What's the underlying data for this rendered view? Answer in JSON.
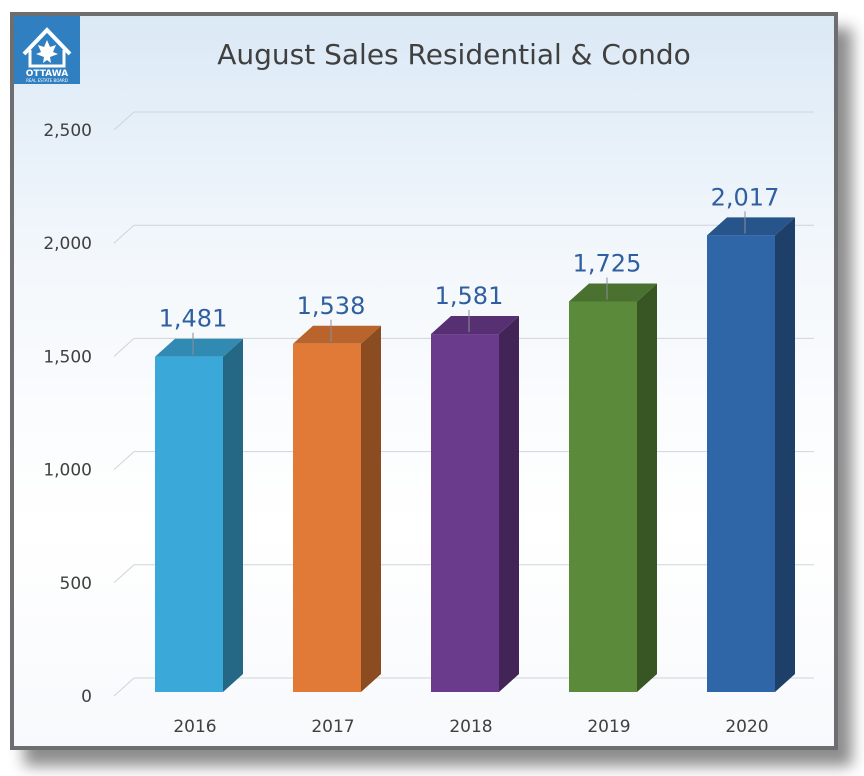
{
  "logo": {
    "line1": "OTTAWA",
    "line2": "REAL ESTATE BOARD",
    "color": "#2f7fc1"
  },
  "chart_data": {
    "type": "bar",
    "title": "August Sales Residential & Condo",
    "categories": [
      "2016",
      "2017",
      "2018",
      "2019",
      "2020"
    ],
    "values": [
      1481,
      1538,
      1581,
      1725,
      2017
    ],
    "data_labels": [
      "1,481",
      "1,538",
      "1,581",
      "1,725",
      "2,017"
    ],
    "colors": [
      "#3aa8d8",
      "#e07a36",
      "#6a3a8c",
      "#5a8a3a",
      "#2f66a8"
    ],
    "ylim": [
      0,
      2500
    ],
    "yticks": [
      0,
      500,
      1000,
      1500,
      2000,
      2500
    ],
    "ytick_labels": [
      "0",
      "500",
      "1,000",
      "1,500",
      "2,000",
      "2,500"
    ],
    "grid": true,
    "label_color": "#2f5fa0"
  }
}
